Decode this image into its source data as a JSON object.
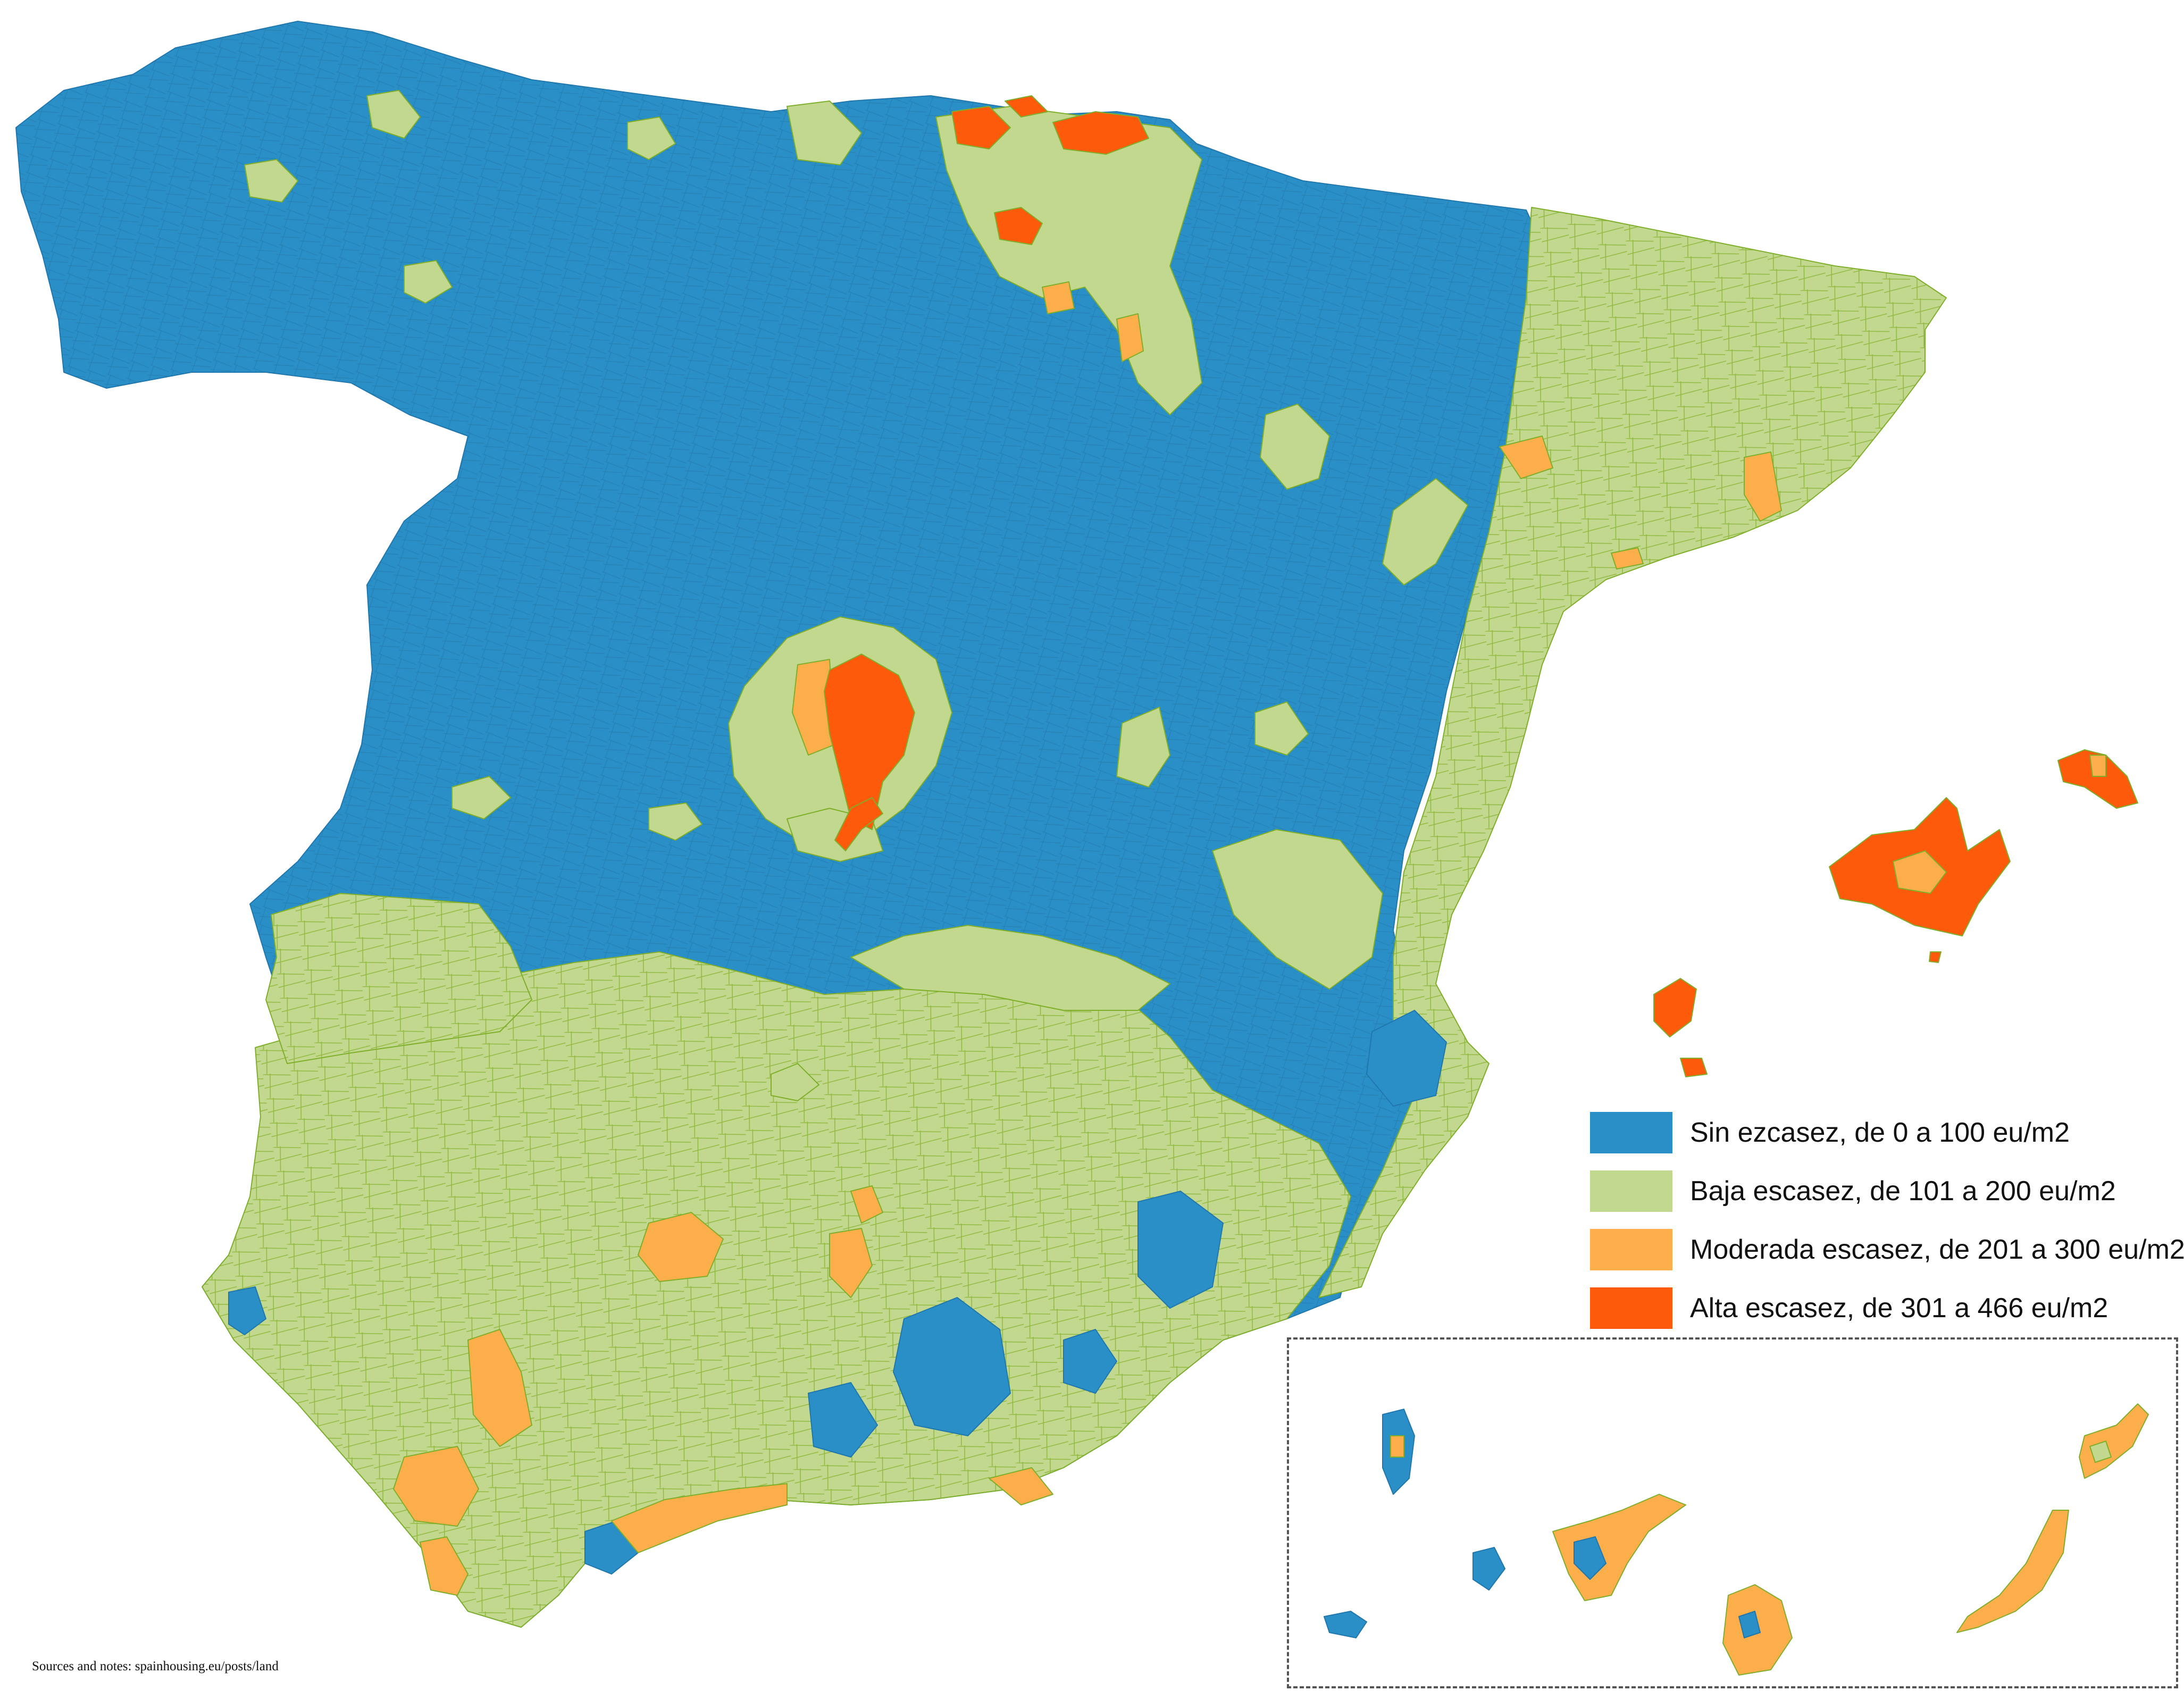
{
  "map": {
    "region": "Spain",
    "categories": [
      {
        "key": "sin",
        "label": "Sin ezcasez, de 0 a 100 eu/m2",
        "color": "#2b8fc7"
      },
      {
        "key": "baja",
        "label": "Baja escasez, de 101 a 200 eu/m2",
        "color": "#c2d88e"
      },
      {
        "key": "moderada",
        "label": "Moderada escasez, de 201 a 300 eu/m2",
        "color": "#fbae4a"
      },
      {
        "key": "alta",
        "label": "Alta escasez, de 301 a 466 eu/m2",
        "color": "#fd5a0c"
      }
    ],
    "boundary_color": "#7fae2a"
  },
  "source_note": "Sources and notes: spainhousing.eu/posts/land"
}
